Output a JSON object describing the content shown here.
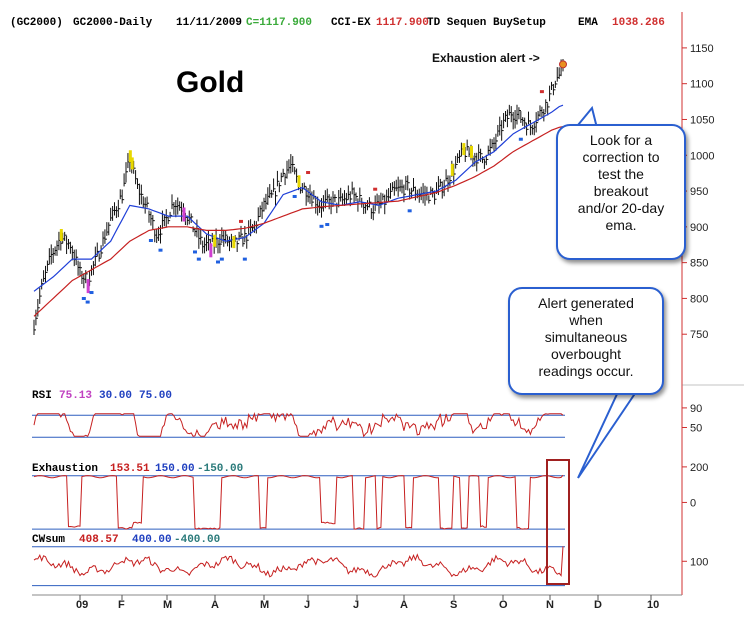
{
  "header": {
    "symbol": "(GC2000)",
    "name": "GC2000-Daily",
    "date": "11/11/2009",
    "close_label": "C=1117.900",
    "cci_label": "CCI-EX",
    "cci_value": "1117.900",
    "study_label": "TD Sequen BuySetup",
    "ema_label": "EMA",
    "ema_value": "1038.286"
  },
  "colors": {
    "price_bars": "#111111",
    "ema_blue": "#1f3fd8",
    "ema_red": "#c62020",
    "rsi_line": "#c62020",
    "guide_line": "#2e5fbf",
    "axis_red": "#d03030",
    "callout_border": "#2a5fd0",
    "highlight_box": "#a02020",
    "yellow_bars": "#e8d800",
    "magenta_bars": "#d040d0",
    "blue_markers": "#2060e0",
    "red_markers": "#d03030"
  },
  "title": "Gold",
  "annotation_alert": "Exhaustion alert ->",
  "callout_top": [
    "Look for a",
    "correction to",
    "test the",
    "breakout",
    "and/or 20-day",
    "ema."
  ],
  "callout_bottom": [
    "Alert generated",
    "when",
    "simultaneous",
    "overbought",
    "readings occur."
  ],
  "rsi_panel": {
    "label": "RSI",
    "value": "75.13",
    "level_low": "30.00",
    "level_high": "75.00"
  },
  "exhaustion_panel": {
    "label": "Exhaustion",
    "value": "153.51",
    "level_high": "150.00",
    "level_low": "-150.00"
  },
  "cwsum_panel": {
    "label": "CWsum",
    "value": "408.57",
    "level_high": "400.00",
    "level_low": "-400.00"
  },
  "chart_data": {
    "type": "line",
    "title": "Gold",
    "x_ticks": [
      "09",
      "F",
      "M",
      "A",
      "M",
      "J",
      "J",
      "A",
      "S",
      "O",
      "N",
      "D",
      "10"
    ],
    "price_axis": {
      "ticks": [
        1150,
        1100,
        1050,
        1000,
        950,
        900,
        850,
        800,
        750
      ],
      "range": [
        700,
        1175
      ]
    },
    "price": {
      "anchors": [
        [
          0,
          765
        ],
        [
          4,
          815
        ],
        [
          9,
          860
        ],
        [
          14,
          885
        ],
        [
          19,
          875
        ],
        [
          24,
          835
        ],
        [
          28,
          825
        ],
        [
          34,
          865
        ],
        [
          40,
          910
        ],
        [
          46,
          945
        ],
        [
          50,
          995
        ],
        [
          54,
          955
        ],
        [
          59,
          925
        ],
        [
          64,
          890
        ],
        [
          68,
          905
        ],
        [
          73,
          935
        ],
        [
          78,
          925
        ],
        [
          83,
          900
        ],
        [
          88,
          875
        ],
        [
          93,
          875
        ],
        [
          98,
          885
        ],
        [
          104,
          875
        ],
        [
          110,
          885
        ],
        [
          115,
          900
        ],
        [
          120,
          930
        ],
        [
          125,
          945
        ],
        [
          130,
          975
        ],
        [
          134,
          985
        ],
        [
          138,
          960
        ],
        [
          143,
          950
        ],
        [
          149,
          930
        ],
        [
          155,
          935
        ],
        [
          160,
          935
        ],
        [
          166,
          945
        ],
        [
          171,
          935
        ],
        [
          177,
          925
        ],
        [
          183,
          935
        ],
        [
          188,
          950
        ],
        [
          194,
          955
        ],
        [
          198,
          950
        ],
        [
          203,
          945
        ],
        [
          209,
          945
        ],
        [
          214,
          960
        ],
        [
          219,
          980
        ],
        [
          224,
          1005
        ],
        [
          229,
          1000
        ],
        [
          234,
          995
        ],
        [
          239,
          1010
        ],
        [
          245,
          1045
        ],
        [
          249,
          1060
        ],
        [
          253,
          1055
        ],
        [
          259,
          1040
        ],
        [
          263,
          1055
        ],
        [
          268,
          1075
        ],
        [
          272,
          1105
        ],
        [
          275,
          1115
        ]
      ],
      "ema20": [
        [
          0,
          810
        ],
        [
          10,
          830
        ],
        [
          20,
          855
        ],
        [
          30,
          855
        ],
        [
          40,
          880
        ],
        [
          50,
          930
        ],
        [
          60,
          925
        ],
        [
          70,
          915
        ],
        [
          80,
          915
        ],
        [
          90,
          890
        ],
        [
          100,
          880
        ],
        [
          110,
          885
        ],
        [
          120,
          905
        ],
        [
          130,
          945
        ],
        [
          140,
          955
        ],
        [
          150,
          935
        ],
        [
          160,
          930
        ],
        [
          170,
          935
        ],
        [
          180,
          930
        ],
        [
          190,
          940
        ],
        [
          200,
          945
        ],
        [
          210,
          950
        ],
        [
          220,
          965
        ],
        [
          230,
          990
        ],
        [
          240,
          1005
        ],
        [
          250,
          1030
        ],
        [
          260,
          1045
        ],
        [
          270,
          1060
        ],
        [
          275,
          1070
        ]
      ],
      "ema50": [
        [
          0,
          775
        ],
        [
          10,
          800
        ],
        [
          20,
          825
        ],
        [
          30,
          840
        ],
        [
          40,
          855
        ],
        [
          50,
          880
        ],
        [
          60,
          895
        ],
        [
          70,
          900
        ],
        [
          80,
          900
        ],
        [
          90,
          895
        ],
        [
          100,
          895
        ],
        [
          110,
          898
        ],
        [
          120,
          905
        ],
        [
          130,
          915
        ],
        [
          140,
          925
        ],
        [
          150,
          928
        ],
        [
          160,
          930
        ],
        [
          170,
          932
        ],
        [
          180,
          934
        ],
        [
          190,
          936
        ],
        [
          200,
          942
        ],
        [
          210,
          948
        ],
        [
          220,
          958
        ],
        [
          230,
          970
        ],
        [
          240,
          985
        ],
        [
          250,
          1005
        ],
        [
          260,
          1020
        ],
        [
          270,
          1035
        ],
        [
          275,
          1040
        ]
      ]
    },
    "rsi": {
      "axis_ticks": [
        90,
        50
      ],
      "range": [
        0,
        100
      ],
      "level_low": 30,
      "level_high": 75,
      "last": 75.13
    },
    "exhaustion": {
      "axis_ticks": [
        200,
        0
      ],
      "range": [
        -200,
        250
      ],
      "level_low": -150,
      "level_high": 150,
      "last": 153.51
    },
    "cwsum": {
      "axis_ticks": [
        100
      ],
      "range": [
        -450,
        600
      ],
      "level_low": -400,
      "level_high": 400,
      "last": 408.57
    }
  }
}
